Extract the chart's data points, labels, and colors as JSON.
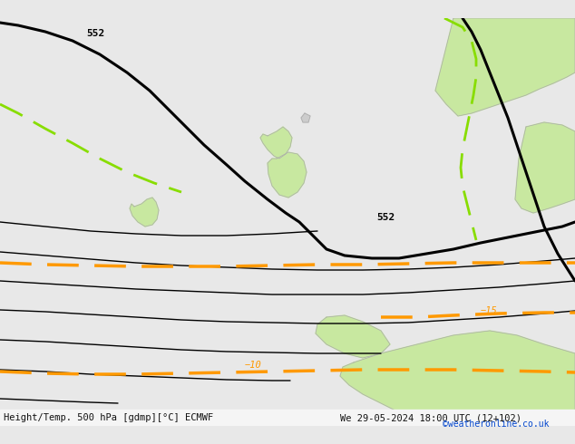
{
  "title_left": "Height/Temp. 500 hPa [gdmp][°C] ECMWF",
  "title_right": "We 29-05-2024 18:00 UTC (12+102)",
  "credit": "©weatheronline.co.uk",
  "background_color": "#e8e8e8",
  "land_color": "#c8e8a0",
  "land_outline": "#aaaaaa",
  "fig_width": 6.34,
  "fig_height": 4.9,
  "dpi": 100,
  "geo_color": "#000000",
  "temp_color": "#ff9900",
  "green_color": "#88dd00",
  "geo_lw": 2.2,
  "thin_lw": 1.0,
  "temp_lw": 2.5,
  "green_lw": 2.0
}
